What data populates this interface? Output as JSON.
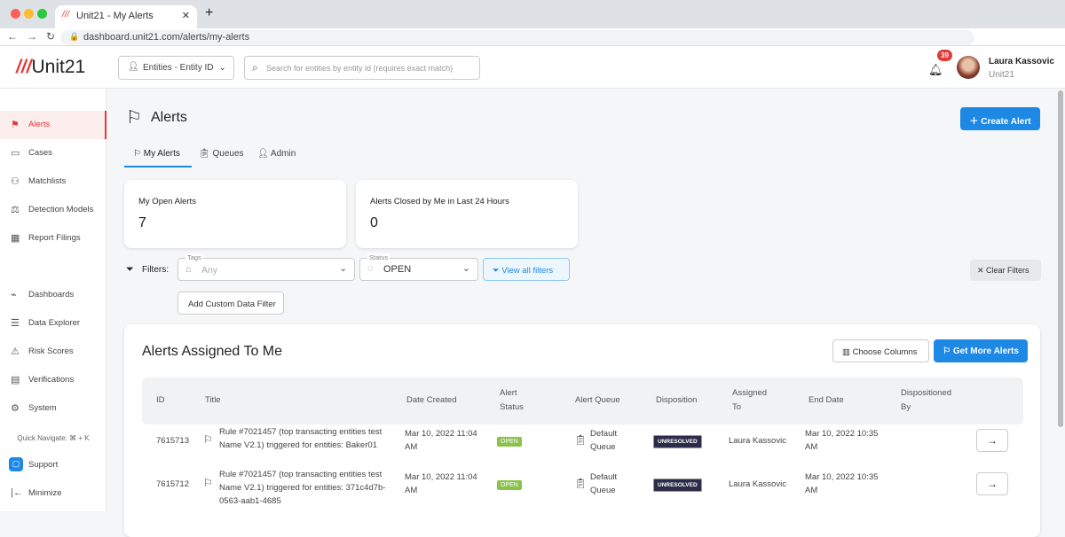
{
  "browser": {
    "tab_title": "Unit21 - My Alerts",
    "url": "dashboard.unit21.com/alerts/my-alerts"
  },
  "header": {
    "logo": "Unit21",
    "entity_select": "Entities - Entity ID",
    "search_placeholder": "Search for entities by entity id (requires exact match)",
    "notifications": "39",
    "user_name": "Laura Kassovic",
    "user_org": "Unit21"
  },
  "sidebar": {
    "items": [
      {
        "label": "Alerts",
        "icon": "flag-icon"
      },
      {
        "label": "Cases",
        "icon": "briefcase-icon"
      },
      {
        "label": "Matchlists",
        "icon": "user-plus-icon"
      },
      {
        "label": "Detection Models",
        "icon": "scale-icon"
      },
      {
        "label": "Report Filings",
        "icon": "building-icon"
      },
      {
        "label": "Dashboards",
        "icon": "chart-icon"
      },
      {
        "label": "Data Explorer",
        "icon": "search-data-icon"
      },
      {
        "label": "Risk Scores",
        "icon": "warning-icon"
      },
      {
        "label": "Verifications",
        "icon": "id-card-icon"
      },
      {
        "label": "System",
        "icon": "gear-icon"
      }
    ],
    "quick_nav": "Quick Navigate: ⌘ + K",
    "support": "Support",
    "minimize": "Minimize"
  },
  "page": {
    "title": "Alerts",
    "create_button": "Create Alert",
    "tabs": [
      "My Alerts",
      "Queues",
      "Admin"
    ],
    "stats": [
      {
        "label": "My Open Alerts",
        "value": "7"
      },
      {
        "label": "Alerts Closed by Me in Last 24 Hours",
        "value": "0"
      }
    ],
    "filters": {
      "label": "Filters:",
      "tags_label": "Tags",
      "tags_placeholder": "Any",
      "status_label": "Status",
      "status_value": "OPEN",
      "view_all": "View all filters",
      "clear": "Clear Filters",
      "add_custom": "Add Custom Data Filter"
    }
  },
  "table": {
    "title": "Alerts Assigned To Me",
    "choose_columns": "Choose Columns",
    "get_more": "Get More Alerts",
    "columns": [
      "ID",
      "Title",
      "Date Created",
      "Alert Status",
      "Alert Queue",
      "Disposition",
      "Assigned To",
      "End Date",
      "Dispositioned By"
    ],
    "rows": [
      {
        "id": "7615713",
        "title": "Rule #7021457 (top transacting entities test Name V2.1) triggered for entities: Baker01",
        "created": "Mar 10, 2022 11:04 AM",
        "status": "OPEN",
        "queue": "Default Queue",
        "disposition": "UNRESOLVED",
        "assigned": "Laura Kassovic",
        "end": "Mar 10, 2022 10:35 AM",
        "dispositioned_by": ""
      },
      {
        "id": "7615712",
        "title": "Rule #7021457 (top transacting entities test Name V2.1) triggered for entities: 371c4d7b-0563-aab1-4685",
        "created": "Mar 10, 2022 11:04 AM",
        "status": "OPEN",
        "queue": "Default Queue",
        "disposition": "UNRESOLVED",
        "assigned": "Laura Kassovic",
        "end": "Mar 10, 2022 10:35 AM",
        "dispositioned_by": ""
      }
    ]
  },
  "colors": {
    "accent": "#1e88e5",
    "brand": "#e53935",
    "open": "#8bc34a",
    "unresolved": "#2c2c4a"
  }
}
